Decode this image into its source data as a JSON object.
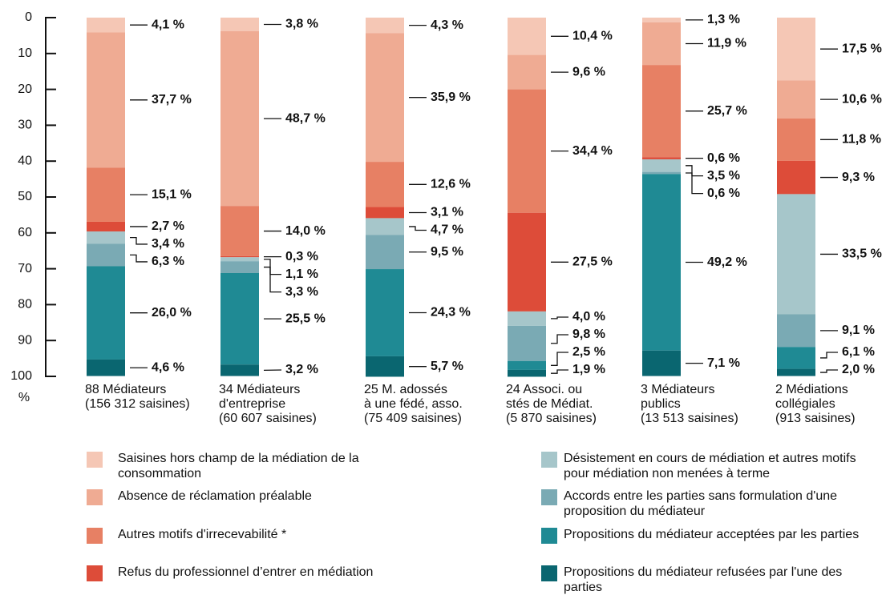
{
  "chart_data": {
    "type": "stacked_bar",
    "y_label": "%",
    "ylim": [
      0,
      100
    ],
    "y_inverted": true,
    "yticks": [
      0,
      10,
      20,
      30,
      40,
      50,
      60,
      70,
      80,
      90,
      100
    ],
    "categories": [
      "88 Médiateurs\n(156 312 saisines)",
      "34 Médiateurs\nd'entreprise\n(60 607 saisines)",
      "25 M. adossés\nà une fédé, asso.\n(75 409 saisines)",
      "24 Associ. ou\nstés de Médiat.\n(5 870 saisines)",
      "3 Médiateurs\npublics\n(13 513 saisines)",
      "2 Médiations\ncollégiales\n(913 saisines)"
    ],
    "series": [
      {
        "name": "Saisines hors champ de la médiation de la consommation",
        "color": "#f5c7b5",
        "values": [
          4.1,
          3.8,
          4.3,
          10.4,
          1.3,
          17.5
        ],
        "value_labels": [
          "4,1 %",
          "3,8 %",
          "4,3 %",
          "10,4 %",
          "1,3 %",
          "17,5 %"
        ]
      },
      {
        "name": "Absence de réclamation préalable",
        "color": "#efab93",
        "values": [
          37.7,
          48.7,
          35.9,
          9.6,
          11.9,
          10.6
        ],
        "value_labels": [
          "37,7 %",
          "48,7 %",
          "35,9 %",
          "9,6 %",
          "11,9 %",
          "10,6 %"
        ]
      },
      {
        "name": "Autres motifs d'irrecevabilité *",
        "color": "#e78064",
        "values": [
          15.1,
          14.0,
          12.6,
          34.4,
          25.7,
          11.8
        ],
        "value_labels": [
          "15,1 %",
          "14,0 %",
          "12,6 %",
          "34,4 %",
          "25,7 %",
          "11,8 %"
        ]
      },
      {
        "name": "Refus du professionnel d’entrer en médiation",
        "color": "#dd4c39",
        "values": [
          2.7,
          0.3,
          3.1,
          27.5,
          0.6,
          9.3
        ],
        "value_labels": [
          "2,7 %",
          "0,3 %",
          "3,1 %",
          "27,5 %",
          "0,6 %",
          "9,3 %"
        ]
      },
      {
        "name": "Désistement en cours de médiation et autres motifs pour médiation non menées à terme",
        "color": "#a6c6ca",
        "values": [
          3.4,
          1.1,
          4.7,
          4.0,
          3.5,
          33.5
        ],
        "value_labels": [
          "3,4 %",
          "1,1 %",
          "4,7 %",
          "4,0 %",
          "3,5 %",
          "33,5 %"
        ]
      },
      {
        "name": "Accords entre les parties sans formulation d'une proposition du médiateur",
        "color": "#7aaab4",
        "values": [
          6.3,
          3.3,
          9.5,
          9.8,
          0.6,
          9.1
        ],
        "value_labels": [
          "6,3 %",
          "3,3 %",
          "9,5 %",
          "9,8 %",
          "0,6 %",
          "9,1 %"
        ]
      },
      {
        "name": "Propositions du médiateur acceptées par les parties",
        "color": "#1f8a94",
        "values": [
          26.0,
          25.5,
          24.3,
          2.5,
          49.2,
          6.1
        ],
        "value_labels": [
          "26,0 %",
          "25,5 %",
          "24,3 %",
          "2,5 %",
          "49,2 %",
          "6,1 %"
        ]
      },
      {
        "name": "Propositions du médiateur refusées par l'une des parties",
        "color": "#0a6670",
        "values": [
          4.6,
          3.2,
          5.7,
          1.9,
          7.1,
          2.0
        ],
        "value_labels": [
          "4,6 %",
          "3,2 %",
          "5,7 %",
          "1,9 %",
          "7,1 %",
          "2,0 %"
        ]
      }
    ]
  }
}
